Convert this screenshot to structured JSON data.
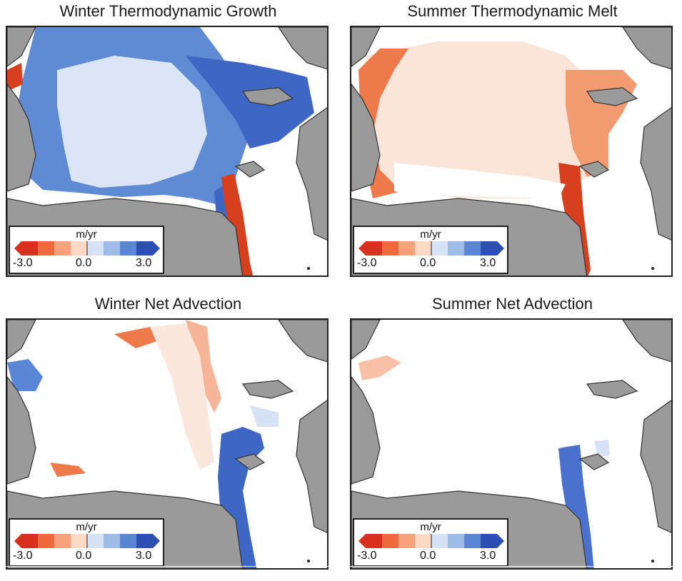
{
  "panels": [
    {
      "title": "Winter Thermodynamic Growth",
      "legend": {
        "unit": "m/yr",
        "min": "-3.0",
        "mid": "0.0",
        "max": "3.0"
      }
    },
    {
      "title": "Summer Thermodynamic Melt",
      "legend": {
        "unit": "m/yr",
        "min": "-3.0",
        "mid": "0.0",
        "max": "3.0"
      }
    },
    {
      "title": "Winter Net Advection",
      "legend": {
        "unit": "m/yr",
        "min": "-3.0",
        "mid": "0.0",
        "max": "3.0"
      }
    },
    {
      "title": "Summer Net Advection",
      "legend": {
        "unit": "m/yr",
        "min": "-3.0",
        "mid": "0.0",
        "max": "3.0"
      }
    }
  ],
  "colors": {
    "land": "#9a9a9a",
    "coast": "#333333",
    "ocean": "#ffffff",
    "colorbar": [
      "#d7301f",
      "#ee6a3d",
      "#f8a27c",
      "#fdd9c6",
      "#ffffff",
      "#d6e2f5",
      "#9fbbe8",
      "#5a86d6",
      "#2b4fb3"
    ]
  }
}
